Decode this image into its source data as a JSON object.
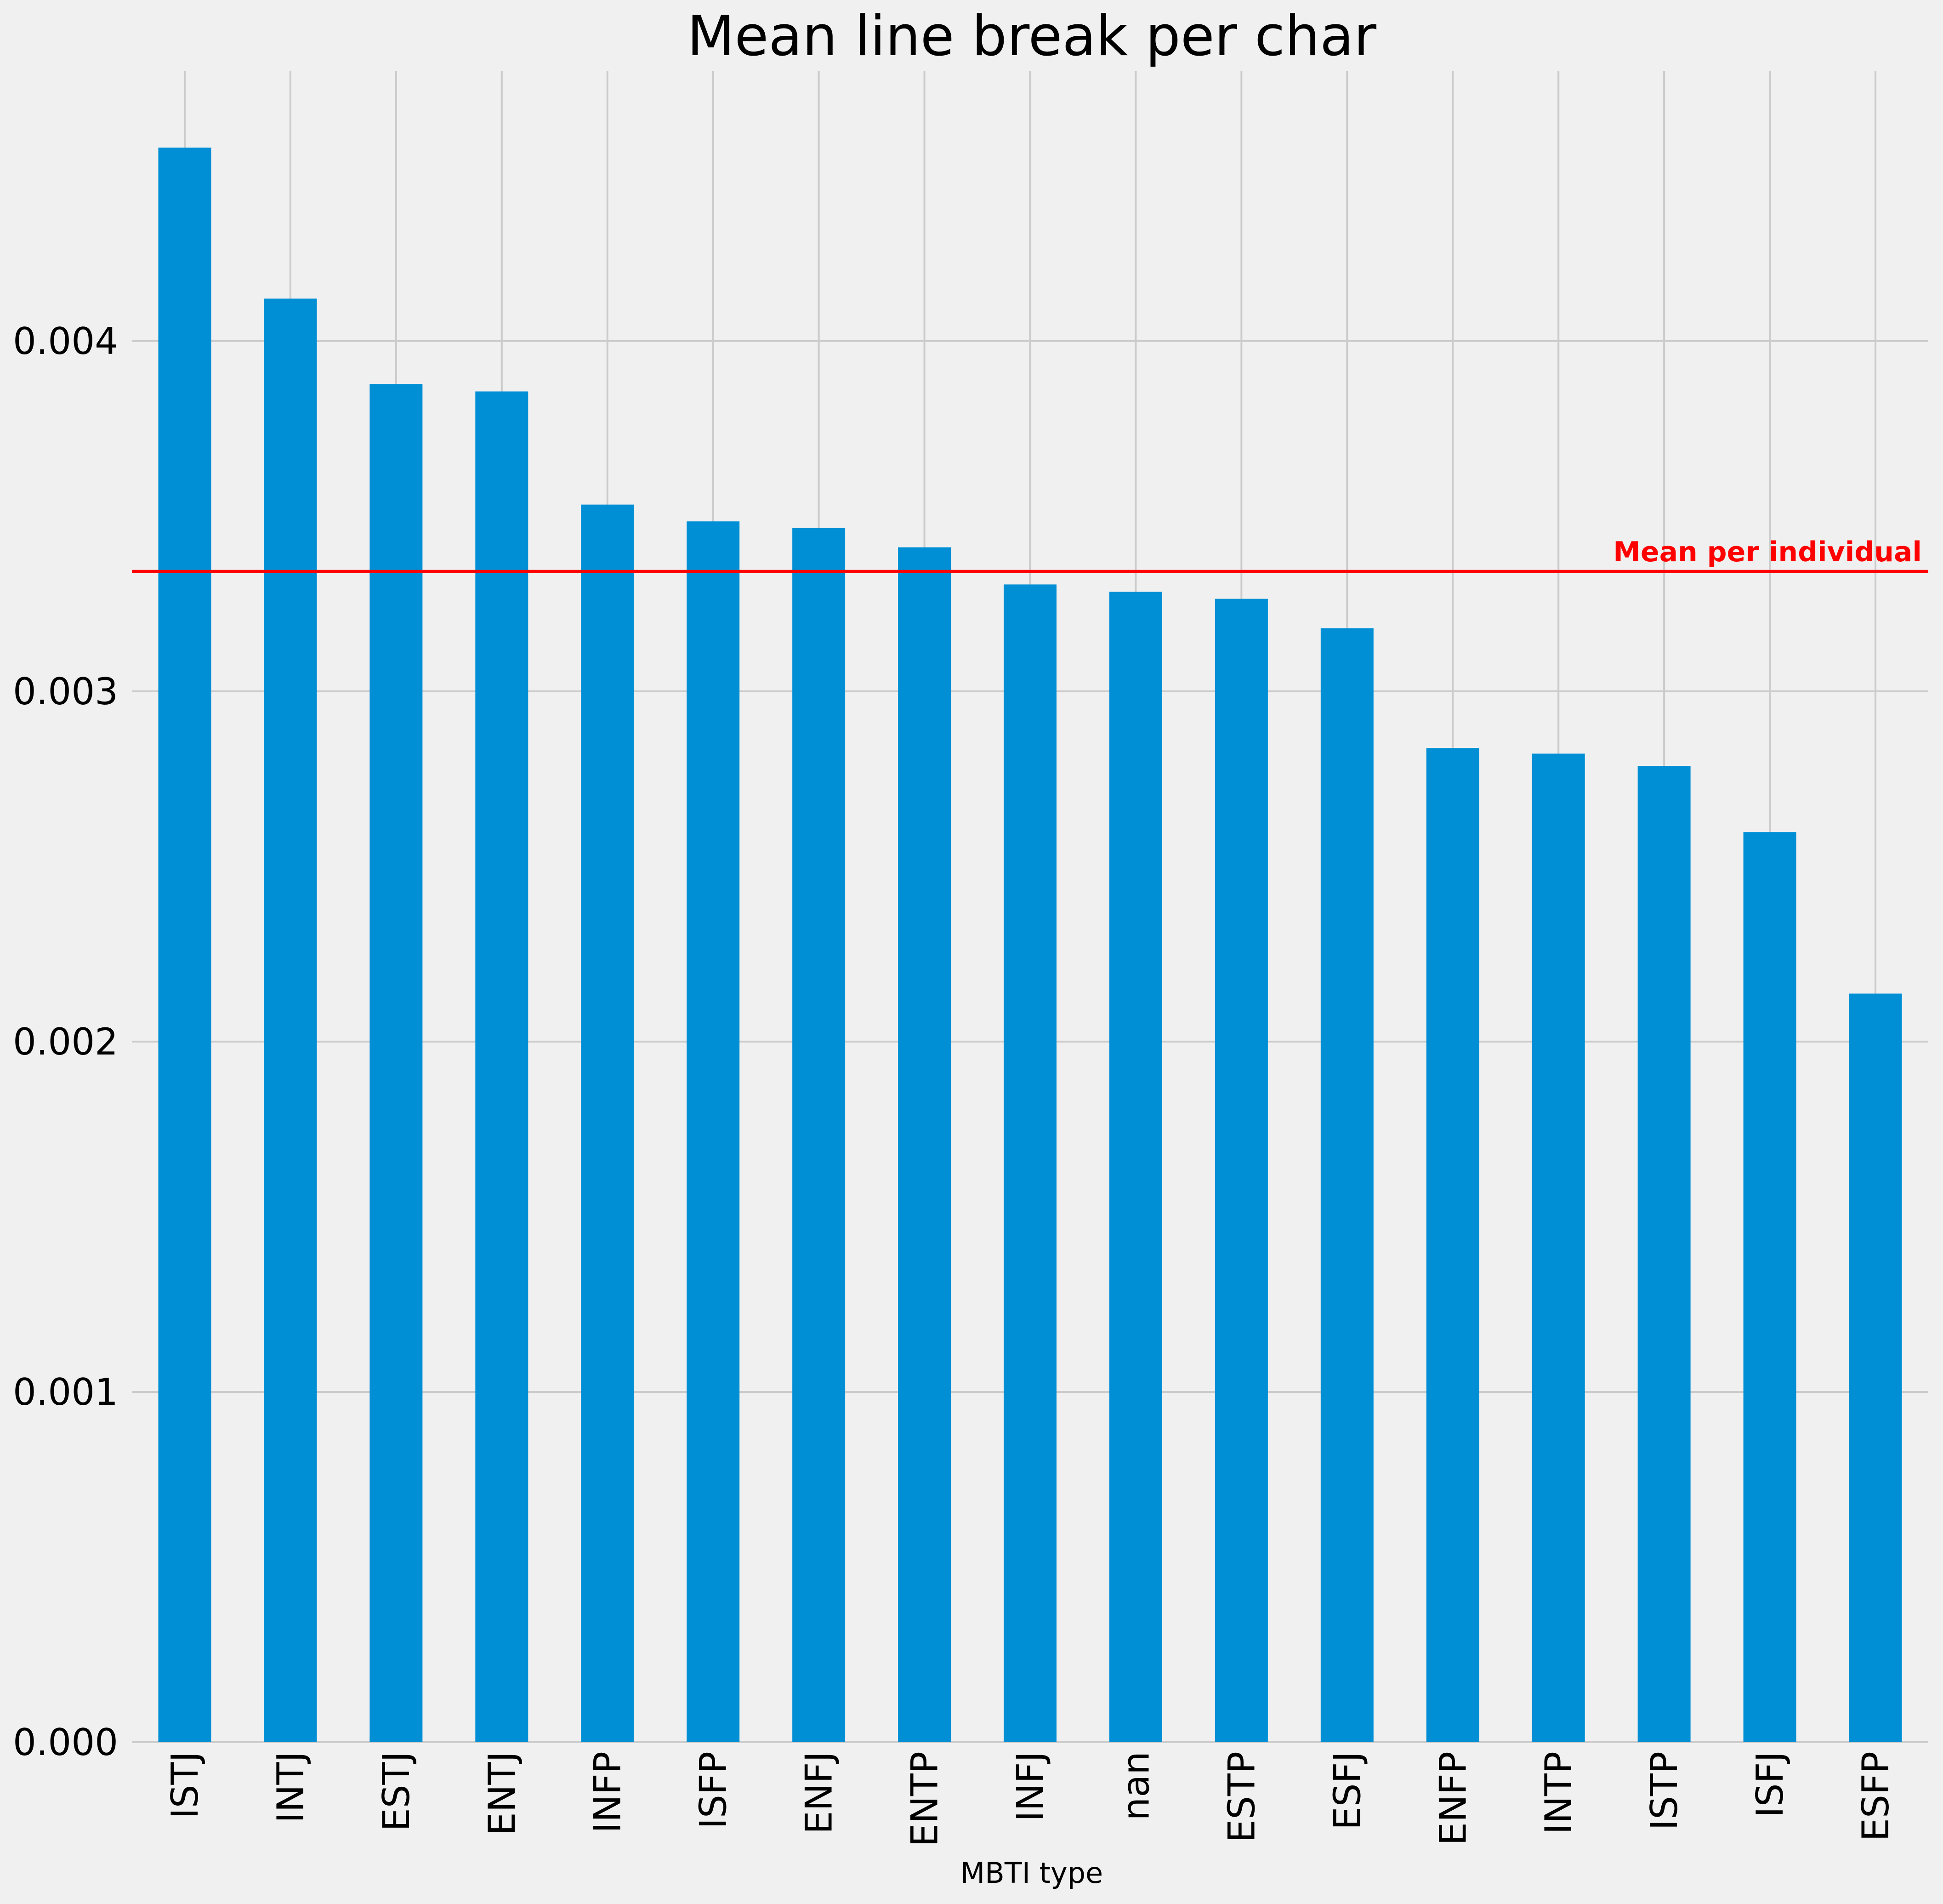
{
  "chart_data": {
    "type": "bar",
    "title": "Mean line break per char",
    "xlabel": "MBTI type",
    "ylabel": "",
    "categories": [
      "ISTJ",
      "INTJ",
      "ESTJ",
      "ENTJ",
      "INFP",
      "ISFP",
      "ENFJ",
      "ENTP",
      "INFJ",
      "nan",
      "ESTP",
      "ESFJ",
      "ENFP",
      "INTP",
      "ISTP",
      "ISFJ",
      "ESFP"
    ],
    "values": [
      0.004552,
      0.004121,
      0.003877,
      0.003856,
      0.003533,
      0.003485,
      0.003466,
      0.003411,
      0.003305,
      0.003284,
      0.003264,
      0.00318,
      0.002838,
      0.002822,
      0.002787,
      0.002598,
      0.002137
    ],
    "ylim": [
      0,
      0.00477
    ],
    "yticks": [
      0.0,
      0.001,
      0.002,
      0.003,
      0.004
    ],
    "ytick_labels": [
      "0.000",
      "0.001",
      "0.002",
      "0.003",
      "0.004"
    ],
    "grid": true,
    "bar_color": "#008fd5",
    "reference_line": {
      "label": "Mean per individual",
      "value": 0.003342,
      "color": "#ff0000"
    }
  }
}
